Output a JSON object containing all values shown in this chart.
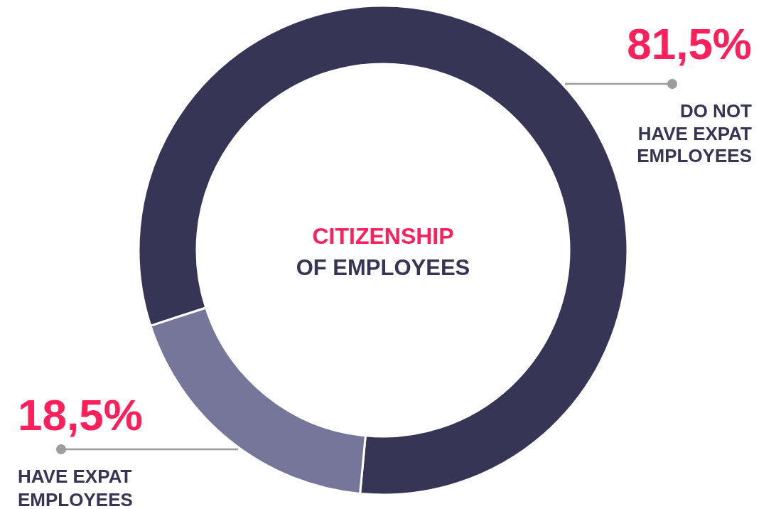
{
  "chart_data": {
    "type": "donut",
    "title": "CITIZENSHIP",
    "subtitle": "OF EMPLOYEES",
    "categories": [
      "DO NOT HAVE EXPAT EMPLOYEES",
      "HAVE EXPAT EMPLOYEES"
    ],
    "values": [
      81.5,
      18.5
    ],
    "value_labels": [
      "81,5%",
      "18,5%"
    ],
    "colors": [
      "#363556",
      "#76769a"
    ]
  }
}
